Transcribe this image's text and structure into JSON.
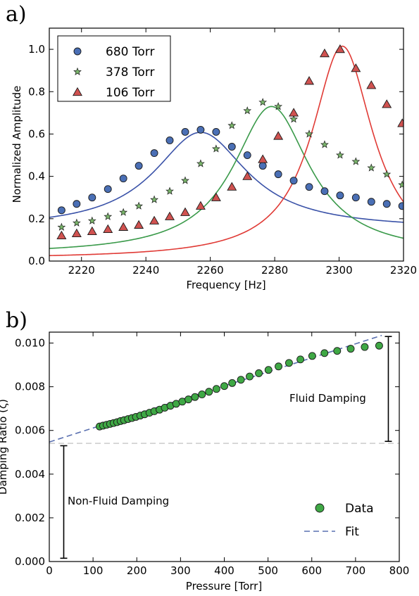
{
  "chart_data": [
    {
      "panel_label": "a)",
      "type": "scatter",
      "xlabel": "Frequency [Hz]",
      "ylabel": "Normalized Amplitude",
      "xlim": [
        2210,
        2320
      ],
      "ylim": [
        0.0,
        1.1
      ],
      "xticks": [
        2220,
        2240,
        2260,
        2280,
        2300,
        2320
      ],
      "yticks": [
        0.0,
        0.2,
        0.4,
        0.6,
        0.8,
        1.0
      ],
      "legend_position": "top-left",
      "series": [
        {
          "name": "680 Torr",
          "marker": "circle",
          "color": "#4a6fb5",
          "fit_color": "#3a52a8",
          "x": [
            2213.8,
            2218.5,
            2223.3,
            2228.2,
            2233.0,
            2237.8,
            2242.6,
            2247.4,
            2252.2,
            2257.0,
            2261.8,
            2266.7,
            2271.5,
            2276.3,
            2281.1,
            2285.9,
            2290.7,
            2295.5,
            2300.3,
            2305.2,
            2310.0,
            2314.8,
            2319.6
          ],
          "y": [
            0.24,
            0.27,
            0.3,
            0.34,
            0.39,
            0.45,
            0.51,
            0.57,
            0.61,
            0.62,
            0.61,
            0.54,
            0.5,
            0.45,
            0.41,
            0.38,
            0.35,
            0.33,
            0.31,
            0.3,
            0.28,
            0.27,
            0.26
          ],
          "fit": {
            "peak_x": 2257,
            "peak_y": 0.608,
            "half_width": 17.6,
            "offset": 0.15
          }
        },
        {
          "name": "378 Torr",
          "marker": "star",
          "color": "#79b56a",
          "fit_color": "#3a9a4a",
          "x": [
            2213.8,
            2218.5,
            2223.3,
            2228.2,
            2233.0,
            2237.8,
            2242.6,
            2247.4,
            2252.2,
            2257.0,
            2261.8,
            2266.7,
            2271.5,
            2276.3,
            2281.1,
            2285.9,
            2290.7,
            2295.5,
            2300.3,
            2305.2,
            2310.0,
            2314.8,
            2319.6
          ],
          "y": [
            0.16,
            0.18,
            0.19,
            0.21,
            0.23,
            0.26,
            0.29,
            0.33,
            0.38,
            0.46,
            0.53,
            0.64,
            0.71,
            0.75,
            0.73,
            0.67,
            0.6,
            0.55,
            0.5,
            0.47,
            0.44,
            0.41,
            0.36
          ],
          "fit": {
            "peak_x": 2279,
            "peak_y": 0.73,
            "half_width": 14.5,
            "offset": 0.03
          }
        },
        {
          "name": "106 Torr",
          "marker": "triangle",
          "color": "#d05250",
          "fit_color": "#e03a35",
          "x": [
            2213.8,
            2218.5,
            2223.3,
            2228.2,
            2233.0,
            2237.8,
            2242.6,
            2247.4,
            2252.2,
            2257.0,
            2261.8,
            2266.7,
            2271.5,
            2276.3,
            2281.1,
            2285.9,
            2290.7,
            2295.5,
            2300.3,
            2305.2,
            2310.0,
            2314.8,
            2319.6
          ],
          "y": [
            0.12,
            0.13,
            0.14,
            0.15,
            0.16,
            0.17,
            0.19,
            0.21,
            0.23,
            0.26,
            0.3,
            0.35,
            0.4,
            0.48,
            0.59,
            0.7,
            0.85,
            0.98,
            1.0,
            0.91,
            0.83,
            0.74,
            0.65
          ],
          "fit": {
            "peak_x": 2301,
            "peak_y": 1.015,
            "half_width": 11.5,
            "offset": 0.01
          }
        }
      ]
    },
    {
      "panel_label": "b)",
      "type": "scatter",
      "xlabel": "Pressure [Torr]",
      "ylabel": "Damping Ratio (ζ)",
      "xlim": [
        0,
        800
      ],
      "ylim": [
        0.0,
        0.0105
      ],
      "xticks": [
        0,
        100,
        200,
        300,
        400,
        500,
        600,
        700,
        800
      ],
      "yticks": [
        0.0,
        0.002,
        0.004,
        0.006,
        0.008,
        0.01
      ],
      "ytick_labels": [
        "0.000",
        "0.002",
        "0.004",
        "0.006",
        "0.008",
        "0.010"
      ],
      "legend_position": "bottom-right",
      "series": [
        {
          "name": "Data",
          "marker": "circle",
          "color": "#3fa845",
          "x": [
            115,
            123,
            131,
            139,
            147,
            155,
            163,
            171,
            180,
            189,
            198,
            208,
            218,
            229,
            240,
            252,
            264,
            277,
            290,
            304,
            318,
            333,
            349,
            365,
            382,
            400,
            418,
            438,
            458,
            479,
            501,
            524,
            548,
            574,
            601,
            629,
            658,
            689,
            721,
            754
          ],
          "y": [
            0.00618,
            0.00622,
            0.00626,
            0.0063,
            0.00634,
            0.00638,
            0.00643,
            0.00647,
            0.00652,
            0.00657,
            0.00662,
            0.00668,
            0.00674,
            0.00681,
            0.00688,
            0.00695,
            0.00704,
            0.00713,
            0.00722,
            0.00732,
            0.00742,
            0.00753,
            0.00765,
            0.00777,
            0.0079,
            0.00803,
            0.00817,
            0.00832,
            0.00847,
            0.00862,
            0.00877,
            0.00893,
            0.00909,
            0.00925,
            0.00941,
            0.00954,
            0.00964,
            0.00974,
            0.00982,
            0.00988
          ]
        },
        {
          "name": "Fit",
          "style": "dashed",
          "color": "#5a70b0",
          "x": [
            0,
            760
          ],
          "y": [
            0.00547,
            0.01035
          ]
        }
      ],
      "reference_line": {
        "y": 0.00541,
        "style": "dashed",
        "color": "#cfcfcf"
      },
      "annotations": [
        {
          "text": "Non-Fluid Damping",
          "bracket_x": 33,
          "bracket_y": [
            0.00015,
            0.0053
          ]
        },
        {
          "text": "Fluid Damping",
          "bracket_x": 775,
          "bracket_y": [
            0.0055,
            0.0103
          ]
        }
      ]
    }
  ]
}
